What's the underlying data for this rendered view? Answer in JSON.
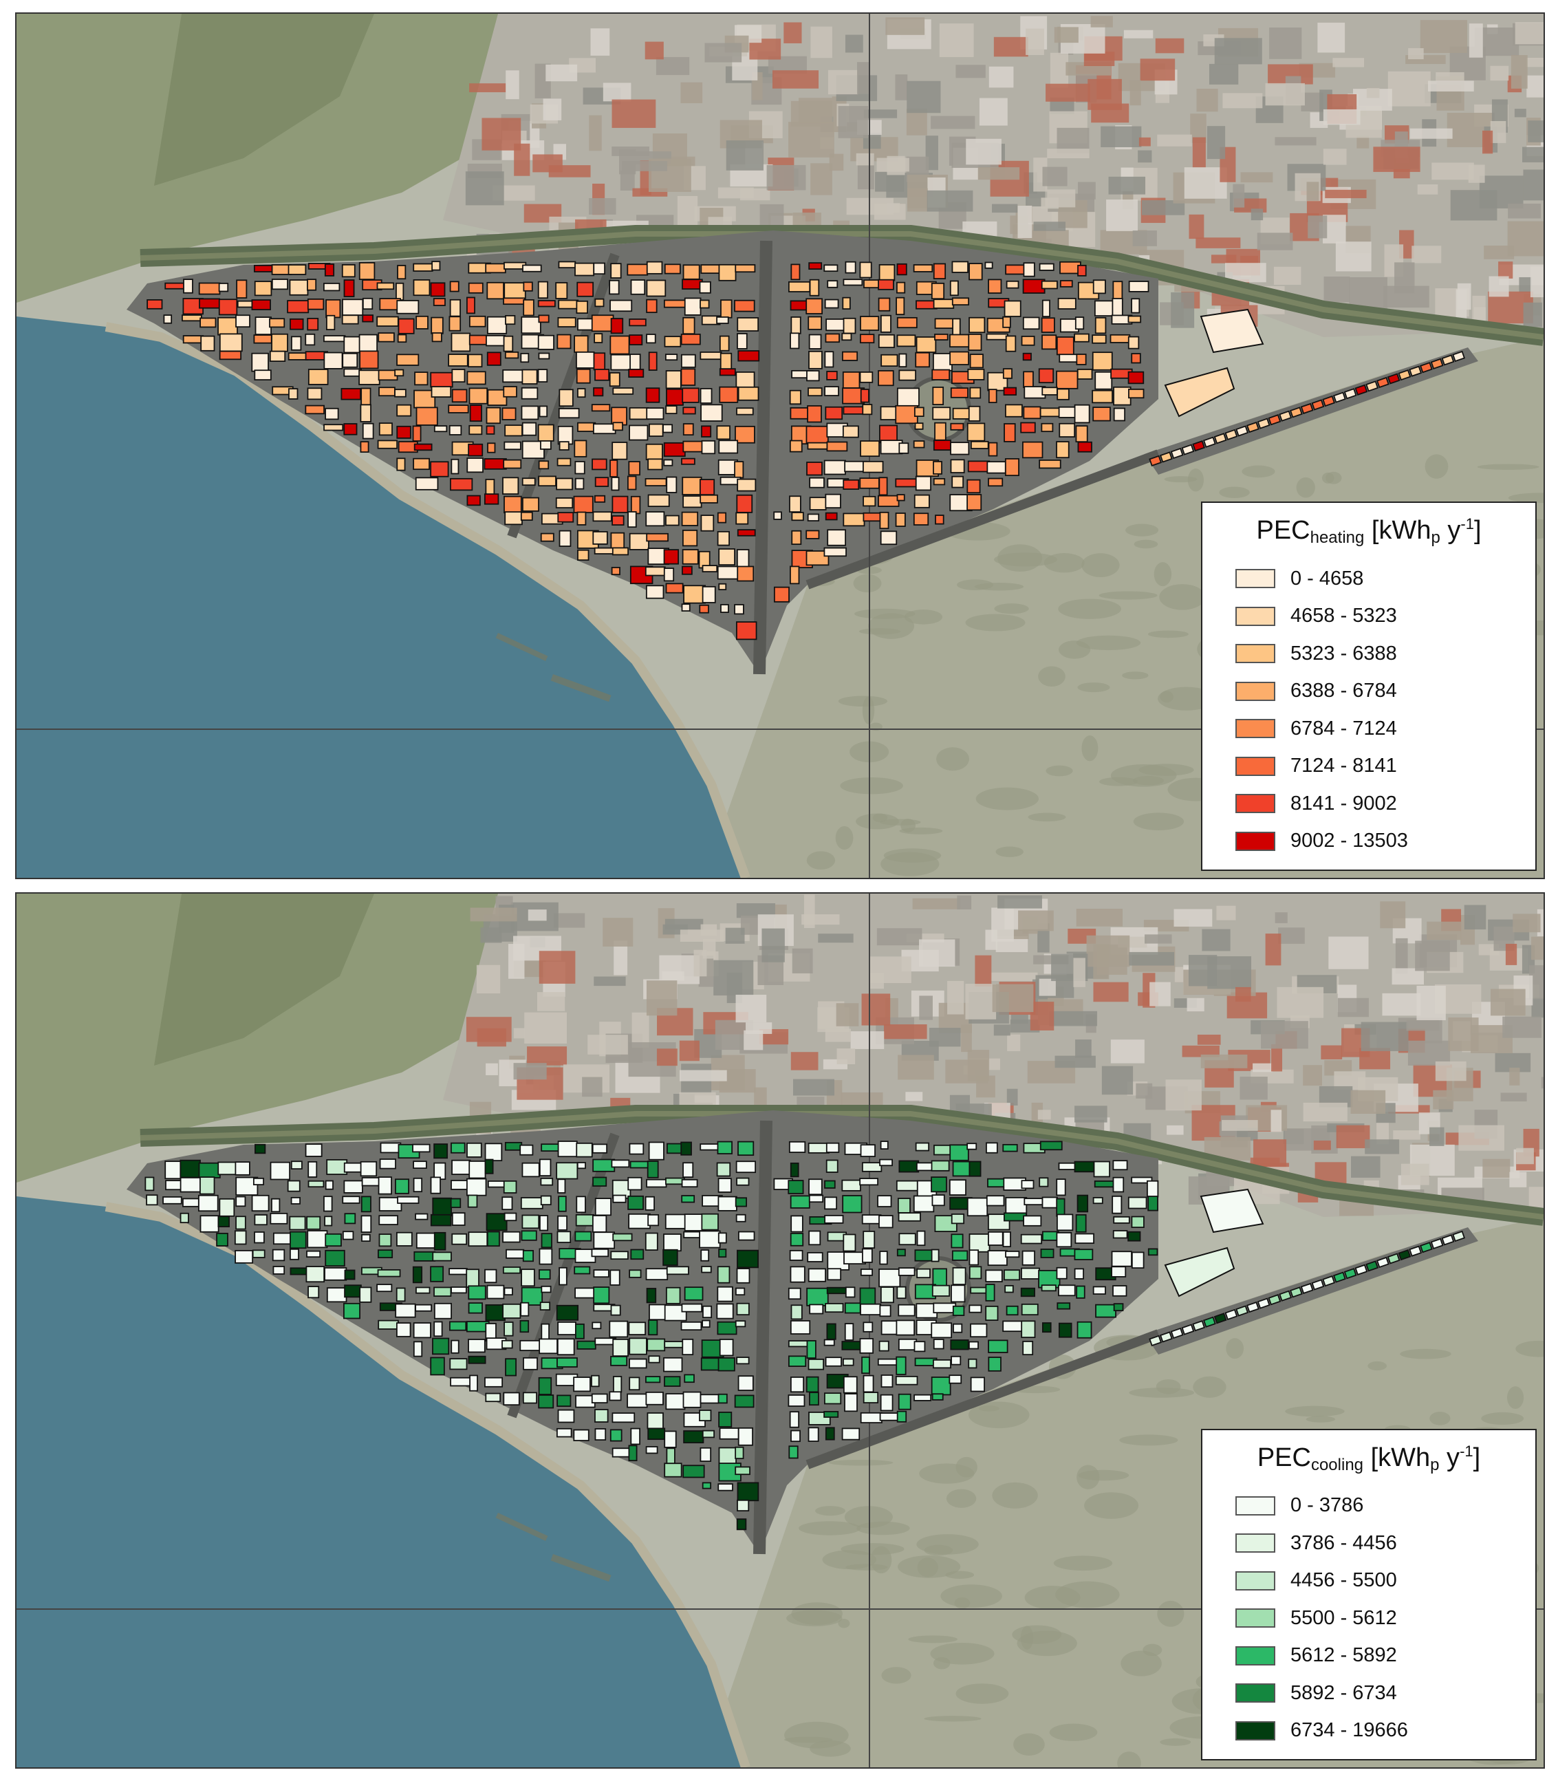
{
  "maps": [
    {
      "id": "heating",
      "legend": {
        "title_main": "PEC",
        "title_sub": "heating",
        "title_unit_pre": "[kWh",
        "title_unit_sub": "p",
        "title_unit_mid": " y",
        "title_unit_sup": "-1",
        "title_unit_post": "]",
        "classes": [
          {
            "label": "0 - 4658",
            "color": "#fdeedb"
          },
          {
            "label": "4658 - 5323",
            "color": "#fdd9ad"
          },
          {
            "label": "5323 - 6388",
            "color": "#fdc584"
          },
          {
            "label": "6388 - 6784",
            "color": "#fcae6b"
          },
          {
            "label": "6784 - 7124",
            "color": "#fb8c4e"
          },
          {
            "label": "7124 - 8141",
            "color": "#f86a3a"
          },
          {
            "label": "8141 - 9002",
            "color": "#f0412a"
          },
          {
            "label": "9002 - 13503",
            "color": "#d00000"
          }
        ]
      }
    },
    {
      "id": "cooling",
      "legend": {
        "title_main": "PEC",
        "title_sub": "cooling",
        "title_unit_pre": "[kWh",
        "title_unit_sub": "p",
        "title_unit_mid": " y",
        "title_unit_sup": "-1",
        "title_unit_post": "]",
        "classes": [
          {
            "label": "0 - 3786",
            "color": "#f5fbf5"
          },
          {
            "label": "3786 - 4456",
            "color": "#e4f5e4"
          },
          {
            "label": "4456 - 5500",
            "color": "#c8ebce"
          },
          {
            "label": "5500 - 5612",
            "color": "#a2dfb0"
          },
          {
            "label": "5612 - 5892",
            "color": "#2cb867"
          },
          {
            "label": "5892 - 6734",
            "color": "#14873f"
          },
          {
            "label": "6734 - 19666",
            "color": "#023d10"
          }
        ]
      }
    }
  ],
  "colors": {
    "sea": "#4f7d8e",
    "land": "#b7b9ab",
    "road": "#6f706c"
  }
}
